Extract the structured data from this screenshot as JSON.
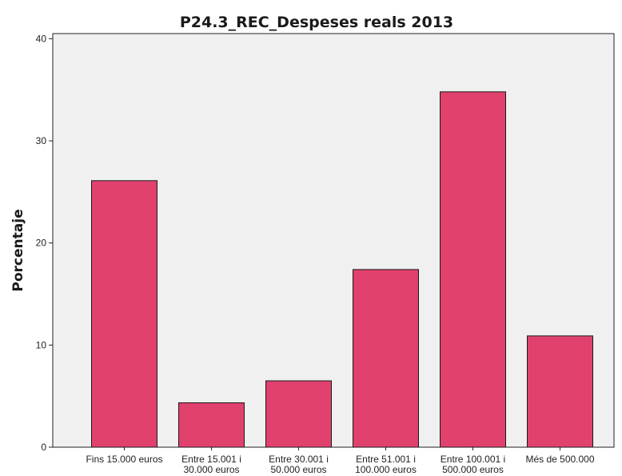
{
  "chart_data": {
    "type": "bar",
    "title": "P24.3_REC_Despeses reals 2013",
    "ylabel": "Porcentaje",
    "xlabel": "",
    "categories": [
      [
        "Fins 15.000 euros"
      ],
      [
        "Entre 15.001 i",
        "30.000 euros"
      ],
      [
        "Entre 30.001 i",
        "50.000 euros"
      ],
      [
        "Entre 51.001 i",
        "100.000 euros"
      ],
      [
        "Entre 100.001 i",
        "500.000 euros"
      ],
      [
        "Més de 500.000"
      ]
    ],
    "values": [
      26.1,
      4.35,
      6.5,
      17.4,
      34.8,
      10.9
    ],
    "ylim": [
      0,
      40.5
    ],
    "yticks": [
      0,
      10,
      20,
      30,
      40
    ],
    "grid": false,
    "colors": {
      "bar": "#e0416d",
      "plot_bg": "#f0f0f0",
      "axis": "#222222"
    }
  }
}
